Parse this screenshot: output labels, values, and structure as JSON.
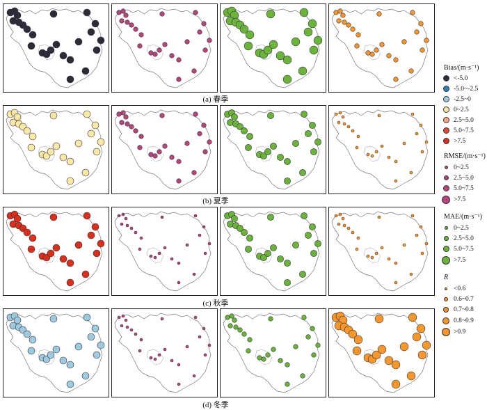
{
  "captions": [
    "(a) 春季",
    "(b) 夏季",
    "(c) 秋季",
    "(d) 冬季"
  ],
  "legend": {
    "bias": {
      "title": "Bias/(m·s⁻¹)",
      "items": [
        {
          "label": "<-5.0",
          "color": "#2b2b3a"
        },
        {
          "label": "-5.0~-2.5",
          "color": "#2c7fb8"
        },
        {
          "label": "-2.5~0",
          "color": "#9ecae1"
        },
        {
          "label": "0~2.5",
          "color": "#fee8a8"
        },
        {
          "label": "2.5~5.0",
          "color": "#f4a582"
        },
        {
          "label": "5.0~7.5",
          "color": "#e34a33"
        },
        {
          "label": ">7.5",
          "color": "#d7301f"
        }
      ]
    },
    "rmse": {
      "title": "RMSE/(m·s⁻¹)",
      "color": "#b5457f",
      "items": [
        {
          "label": "0~2.5"
        },
        {
          "label": "2.5~5.0"
        },
        {
          "label": "5.0~7.5"
        },
        {
          "label": ">7.5"
        }
      ]
    },
    "mae": {
      "title": "MAE/(m·s⁻¹)",
      "color": "#6bb33c",
      "items": [
        {
          "label": "0~2.5"
        },
        {
          "label": "2.5~5.0"
        },
        {
          "label": "5.0~7.5"
        },
        {
          "label": ">7.5"
        }
      ]
    },
    "r": {
      "title": "R",
      "color": "#f5962e",
      "items": [
        {
          "label": "<0.6"
        },
        {
          "label": "0.6~0.7"
        },
        {
          "label": "0.7~0.8"
        },
        {
          "label": "0.8~0.9"
        },
        {
          "label": ">0.9"
        }
      ]
    }
  }
}
